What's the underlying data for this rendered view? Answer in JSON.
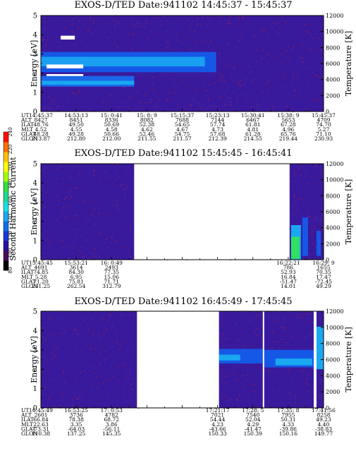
{
  "colorbar": {
    "label": "Second Harmonic Current",
    "ticks": [
      "80",
      "100",
      "120",
      "140",
      "160",
      "180",
      "200",
      "220",
      "240"
    ],
    "colors": [
      "#000000",
      "#4a0a5a",
      "#2a0fa0",
      "#1838d8",
      "#0f6fe8",
      "#1aa8f0",
      "#18e0e0",
      "#20d890",
      "#30e040",
      "#a0ff00",
      "#ffff00",
      "#ffc000",
      "#ff7000",
      "#ff1000"
    ]
  },
  "chart_data": [
    {
      "type": "heatmap",
      "title": "EXOS-D/TED    Date:941102   14:45:37 - 15:45:37",
      "ylabel": "Energy [eV]",
      "y2label": "Temperature [K]",
      "ylim": [
        0,
        5
      ],
      "y2lim": [
        0,
        12000
      ],
      "yticks": [
        "0",
        "1",
        "2",
        "3",
        "4",
        "5"
      ],
      "y2ticks": [
        "0",
        "2000",
        "4000",
        "6000",
        "8000",
        "10000",
        "12000"
      ],
      "gaps": [],
      "bands": [
        {
          "t0": 0.0,
          "t1": 0.62,
          "e0": 2.05,
          "e1": 3.1,
          "color": "#1658e6"
        },
        {
          "t0": 0.0,
          "t1": 0.58,
          "e0": 2.35,
          "e1": 2.85,
          "color": "#1aa0f0"
        },
        {
          "t0": 0.02,
          "t1": 0.15,
          "e0": 2.25,
          "e1": 2.45,
          "color": "#ffffff"
        },
        {
          "t0": 0.02,
          "t1": 0.15,
          "e0": 1.75,
          "e1": 1.95,
          "color": "#ffffff"
        },
        {
          "t0": 0.0,
          "t1": 0.33,
          "e0": 1.3,
          "e1": 1.85,
          "color": "#1a68e8"
        },
        {
          "t0": 0.0,
          "t1": 0.33,
          "e0": 1.4,
          "e1": 1.6,
          "color": "#1aa8f0"
        },
        {
          "t0": 0.07,
          "t1": 0.12,
          "e0": 3.75,
          "e1": 3.95,
          "color": "#ffffff"
        }
      ],
      "table": {
        "labels": [
          "UT",
          "ALT",
          "ILAT",
          "MLT",
          "GLAT",
          "GLON"
        ],
        "columns": [
          [
            "14:45:37",
            "8427",
            "48.76",
            "4.52",
            "48.28",
            "213.87"
          ],
          [
            "14:53:13",
            "8451",
            "49.50",
            "4.55",
            "49.28",
            "212.80"
          ],
          [
            "15: 0:41",
            "8336",
            "50.69",
            "4.58",
            "50.66",
            "212.00"
          ],
          [
            "15: 8: 9",
            "8082",
            "52.38",
            "4.62",
            "52.46",
            "211.55"
          ],
          [
            "15:15:37",
            "7688",
            "54.65",
            "4.67",
            "54.75",
            "211.57"
          ],
          [
            "15:23:13",
            "7144",
            "57.74",
            "4.73",
            "57.68",
            "212.39"
          ],
          [
            "15:30:41",
            "6467",
            "61.81",
            "4.81",
            "61.28",
            "214.55"
          ],
          [
            "15:38: 9",
            "5653",
            "67.28",
            "4.96",
            "65.76",
            "219.44"
          ],
          [
            "15:45:37",
            "4709",
            "74.70",
            "5.27",
            "71.10",
            "230.93"
          ]
        ]
      }
    },
    {
      "type": "heatmap",
      "title": "EXOS-D/TED    Date:941102   15:45:45 - 16:45:41",
      "ylabel": "Energy [eV]",
      "y2label": "Temperature [K]",
      "ylim": [
        0,
        5
      ],
      "y2lim": [
        0,
        12000
      ],
      "yticks": [
        "0",
        "1",
        "2",
        "3",
        "4",
        "5"
      ],
      "y2ticks": [
        "0",
        "2000",
        "4000",
        "6000",
        "8000",
        "10000",
        "12000"
      ],
      "gaps": [
        [
          0.33,
          0.88
        ]
      ],
      "bands": [
        {
          "t0": 0.885,
          "t1": 0.92,
          "e0": 0.0,
          "e1": 1.8,
          "color": "#1aa8f0"
        },
        {
          "t0": 0.885,
          "t1": 0.915,
          "e0": 0.05,
          "e1": 1.2,
          "color": "#30e060"
        },
        {
          "t0": 0.925,
          "t1": 0.945,
          "e0": 0.2,
          "e1": 2.2,
          "color": "#1658e6"
        },
        {
          "t0": 0.975,
          "t1": 0.99,
          "e0": 0.2,
          "e1": 1.5,
          "color": "#1658e6"
        }
      ],
      "table": {
        "labels": [
          "UT",
          "ALT",
          "ILAT",
          "MLT",
          "GLAT",
          "GLON"
        ],
        "columns": [
          [
            "15:45:45",
            "4691",
            "74.85",
            "5.28",
            "71.20",
            "231.25"
          ],
          [
            "15:53:21",
            "3614",
            "84.30",
            "6.95",
            "75.81",
            "262.54"
          ],
          [
            "16: 0:49",
            "2493",
            "77.35",
            "15.06",
            "71.71",
            "312.79"
          ],
          [
            "16:22:21",
            "786",
            "52.93",
            "16.84",
            "-51.47",
            "14.01"
          ],
          [
            "16:29: 9",
            "1655",
            "70.35",
            "17.47",
            "-72.45",
            "49.29"
          ]
        ],
        "positions": [
          0.0,
          0.125,
          0.25,
          0.875,
          1.0
        ]
      }
    },
    {
      "type": "heatmap",
      "title": "EXOS-D/TED    Date:941102   16:45:49 - 17:45:45",
      "ylabel": "Energy [eV]",
      "y2label": "Temperature [K]",
      "ylim": [
        0,
        5
      ],
      "y2lim": [
        0,
        12000
      ],
      "yticks": [
        "0",
        "1",
        "2",
        "3",
        "4",
        "5"
      ],
      "y2ticks": [
        "0",
        "2000",
        "4000",
        "6000",
        "8000",
        "10000",
        "12000"
      ],
      "gaps": [
        [
          0.34,
          0.63
        ],
        [
          0.785,
          0.79
        ],
        [
          0.965,
          0.975
        ]
      ],
      "bands": [
        {
          "t0": 0.63,
          "t1": 0.785,
          "e0": 2.3,
          "e1": 3.05,
          "color": "#1658e6"
        },
        {
          "t0": 0.63,
          "t1": 0.705,
          "e0": 2.45,
          "e1": 2.75,
          "color": "#1aa8f0"
        },
        {
          "t0": 0.79,
          "t1": 0.965,
          "e0": 2.1,
          "e1": 3.0,
          "color": "#1658e6"
        },
        {
          "t0": 0.83,
          "t1": 0.96,
          "e0": 2.2,
          "e1": 2.55,
          "color": "#1aa8f0"
        },
        {
          "t0": 0.975,
          "t1": 1.0,
          "e0": 2.0,
          "e1": 4.2,
          "color": "#1aa8f0"
        }
      ],
      "table": {
        "labels": [
          "UT",
          "ALT",
          "ILAT",
          "MLT",
          "GLAT",
          "GLON"
        ],
        "columns": [
          [
            "16:45:49",
            "2601",
            "66.84",
            "22.63",
            "-73.31",
            "110.38"
          ],
          [
            "16:53:25",
            "3736",
            "78.38",
            "3.35",
            "-64.03",
            "137.25"
          ],
          [
            "17: 0:53",
            "4782",
            "68.72",
            "3.86",
            "-56.11",
            "145.35"
          ],
          [
            "17:21:17",
            "7021",
            "54.44",
            "4.23",
            "-43.66",
            "150.33"
          ],
          [
            "17:28: 5",
            "7540",
            "52.04",
            "4.29",
            "-41.47",
            "150.39"
          ],
          [
            "17:35: 8",
            "7955",
            "50.31",
            "4.33",
            "-39.86",
            "150.16"
          ],
          [
            "17:41:56",
            "8258",
            "49.23",
            "4.40",
            "-38.83",
            "149.77"
          ]
        ],
        "positions": [
          0.0,
          0.125,
          0.25,
          0.625,
          0.75,
          0.875,
          1.0
        ]
      }
    }
  ]
}
